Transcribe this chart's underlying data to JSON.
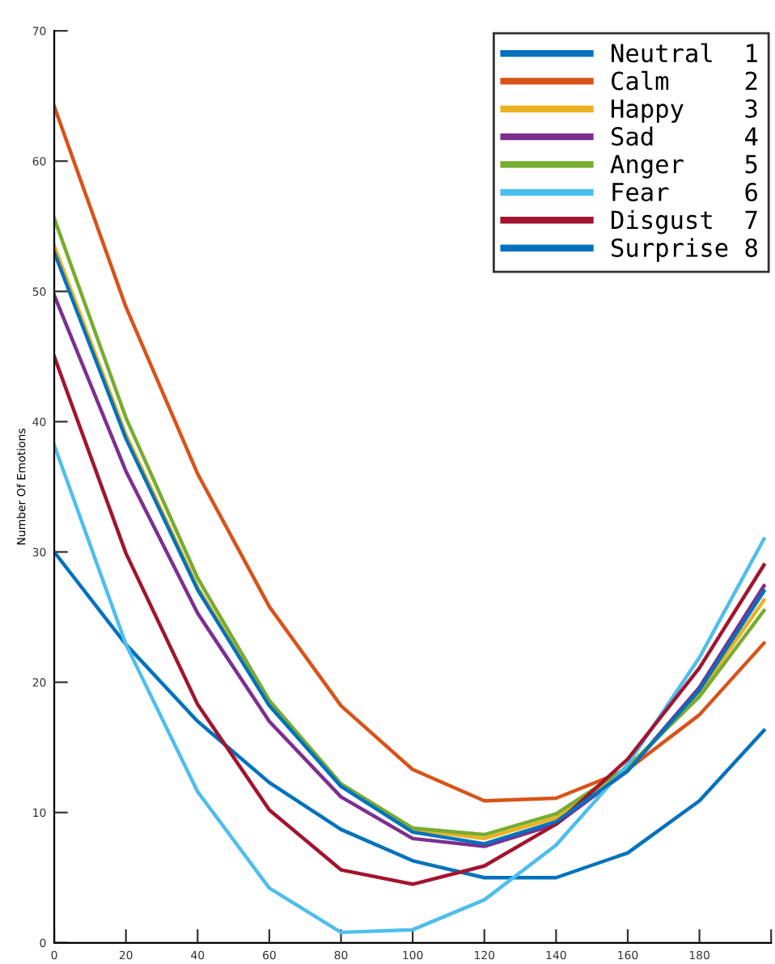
{
  "chart_data": {
    "type": "line",
    "ylabel": "Number Of Emotions",
    "x": [
      0,
      20,
      40,
      60,
      80,
      100,
      120,
      140,
      160,
      180,
      198
    ],
    "series": [
      {
        "name": "Neutral  1",
        "color": "#0072bd",
        "values": [
          30,
          22.9,
          17.0,
          12.3,
          8.7,
          6.3,
          5.0,
          5.0,
          6.9,
          10.9,
          16.3
        ]
      },
      {
        "name": "Calm     2",
        "color": "#d95319",
        "values": [
          64.2,
          48.8,
          36.0,
          25.8,
          18.2,
          13.3,
          10.9,
          11.1,
          13.3,
          17.5,
          23
        ]
      },
      {
        "name": "Happy    3",
        "color": "#edb120",
        "values": [
          53.5,
          39.0,
          27.3,
          18.3,
          12.1,
          8.7,
          8.0,
          9.6,
          13.3,
          19.2,
          26.3
        ]
      },
      {
        "name": "Sad      4",
        "color": "#7e2f8e",
        "values": [
          49.7,
          36.2,
          25.3,
          17.0,
          11.2,
          8.0,
          7.4,
          9.1,
          13.2,
          19.6,
          27.4
        ]
      },
      {
        "name": "Anger    5",
        "color": "#77ac30",
        "values": [
          55.6,
          40.3,
          28.0,
          18.6,
          12.2,
          8.8,
          8.3,
          9.9,
          13.5,
          18.9,
          25.5
        ]
      },
      {
        "name": "Fear     6",
        "color": "#4dbeee",
        "values": [
          38.2,
          22.9,
          11.6,
          4.2,
          0.8,
          1.0,
          3.3,
          7.5,
          13.7,
          21.9,
          31
        ]
      },
      {
        "name": "Disgust  7",
        "color": "#a2142f",
        "values": [
          45,
          29.9,
          18.3,
          10.2,
          5.6,
          4.5,
          5.9,
          9.1,
          14.1,
          21.1,
          29
        ]
      },
      {
        "name": "Surprise 8",
        "color": "#0072bd",
        "values": [
          53,
          38.7,
          27.1,
          18.2,
          12.0,
          8.5,
          7.6,
          9.3,
          13.2,
          19.4,
          27
        ]
      }
    ],
    "xlim": [
      0,
      200
    ],
    "xticks": [
      0,
      20,
      40,
      60,
      80,
      100,
      120,
      140,
      160,
      180,
      {
        "value": 200,
        "label": null
      }
    ],
    "ylim": [
      0,
      70
    ],
    "yticks": [
      0,
      10,
      20,
      30,
      40,
      50,
      60,
      70
    ],
    "grid": false,
    "legend": "top right",
    "marker": "none",
    "line_style": "solid"
  }
}
